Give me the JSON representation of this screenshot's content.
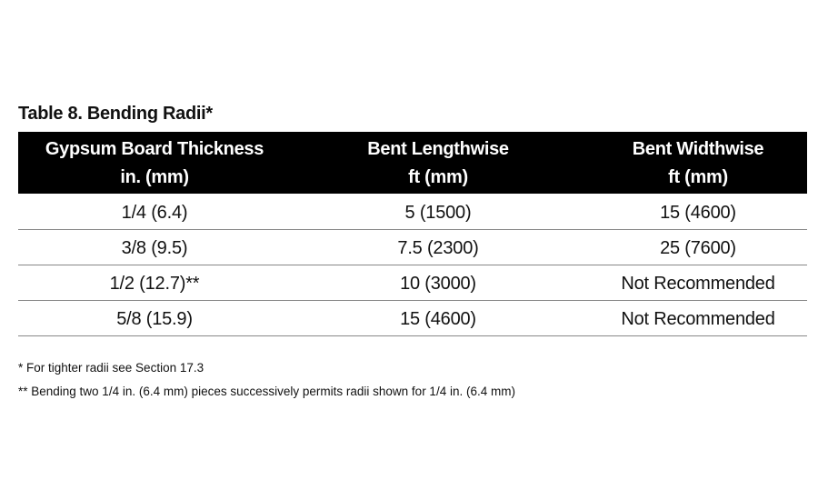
{
  "title": "Table 8. Bending Radii*",
  "table": {
    "header": [
      [
        "Gypsum Board Thickness",
        "in. (mm)"
      ],
      [
        "Bent Lengthwise",
        "ft (mm)"
      ],
      [
        "Bent Widthwise",
        "ft (mm)"
      ]
    ],
    "rows": [
      [
        "1/4 (6.4)",
        "5 (1500)",
        "15 (4600)"
      ],
      [
        "3/8 (9.5)",
        "7.5 (2300)",
        "25 (7600)"
      ],
      [
        "1/2 (12.7)**",
        "10 (3000)",
        "Not Recommended"
      ],
      [
        "5/8 (15.9)",
        "15 (4600)",
        "Not Recommended"
      ]
    ]
  },
  "footnotes": [
    "* For tighter radii see Section 17.3",
    "** Bending two 1/4 in. (6.4 mm) pieces successively permits radii shown for 1/4 in. (6.4 mm)"
  ]
}
